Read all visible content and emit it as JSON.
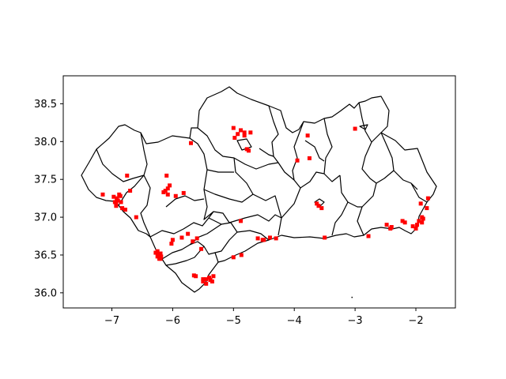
{
  "chart_data": {
    "type": "scatter",
    "title": "",
    "xlabel": "",
    "ylabel": "",
    "xlim": [
      -7.8,
      -1.35
    ],
    "ylim": [
      35.8,
      38.87
    ],
    "x_ticks": [
      -7,
      -6,
      -5,
      -4,
      -3,
      -2
    ],
    "x_tick_labels": [
      "−7",
      "−6",
      "−5",
      "−4",
      "−3",
      "−2"
    ],
    "y_ticks": [
      36.0,
      36.5,
      37.0,
      37.5,
      38.0,
      38.5
    ],
    "y_tick_labels": [
      "36.0",
      "36.5",
      "37.0",
      "37.5",
      "38.0",
      "38.5"
    ],
    "grid": false,
    "marker_color": "#ff0000",
    "boundary_color": "#000000",
    "series": [
      {
        "x": [
          -7.15,
          -6.97,
          -6.95,
          -6.93,
          -6.92,
          -6.9,
          -6.88,
          -6.86,
          -6.83,
          -6.78,
          -6.7,
          -6.6,
          -6.93,
          -6.85,
          -6.75,
          -6.25,
          -6.22,
          -6.2,
          -6.19,
          -6.2,
          -6.15,
          -6.12,
          -6.08,
          -6.05,
          -6.08,
          -5.95,
          -5.82,
          -5.7,
          -6.1,
          -6.02,
          -6.0,
          -5.85,
          -5.75,
          -5.67,
          -5.6,
          -5.53,
          -5.65,
          -5.62,
          -6.28,
          -6.25,
          -6.22,
          -5.5,
          -5.45,
          -5.4,
          -5.38,
          -5.35,
          -5.33,
          -5.45,
          -5.5,
          -5.0,
          -4.98,
          -4.93,
          -4.88,
          -4.82,
          -4.78,
          -4.75,
          -4.72,
          -4.82,
          -4.88,
          -5.0,
          -4.87,
          -4.6,
          -4.5,
          -4.4,
          -4.3,
          -4.52,
          -3.78,
          -3.75,
          -3.95,
          -3.63,
          -3.6,
          -3.55,
          -3.5,
          -3.0,
          -2.78,
          -2.48,
          -2.42,
          -2.4,
          -2.22,
          -2.18,
          -2.05,
          -2.0,
          -1.98,
          -1.95,
          -1.9,
          -1.88,
          -1.82,
          -1.8,
          -1.92,
          -1.9
        ],
        "y": [
          37.3,
          37.27,
          37.2,
          37.18,
          37.25,
          37.22,
          37.3,
          37.28,
          37.12,
          37.1,
          37.35,
          37.0,
          37.15,
          37.2,
          37.55,
          36.55,
          36.5,
          36.45,
          36.48,
          36.52,
          37.33,
          37.35,
          37.38,
          37.42,
          37.3,
          37.28,
          37.32,
          37.98,
          37.55,
          36.65,
          36.7,
          36.73,
          36.78,
          36.68,
          36.72,
          36.58,
          36.23,
          36.22,
          36.53,
          36.48,
          36.45,
          36.15,
          36.18,
          36.2,
          36.17,
          36.15,
          36.22,
          36.12,
          36.18,
          38.18,
          38.05,
          38.1,
          38.15,
          38.12,
          37.9,
          37.88,
          38.12,
          38.08,
          36.95,
          36.47,
          36.5,
          36.72,
          36.7,
          36.73,
          36.72,
          36.7,
          38.08,
          37.78,
          37.75,
          37.18,
          37.15,
          37.12,
          36.73,
          38.17,
          36.75,
          36.9,
          36.85,
          36.87,
          36.95,
          36.93,
          36.88,
          36.85,
          36.9,
          36.95,
          37.0,
          36.98,
          37.12,
          37.25,
          37.18,
          36.93
        ]
      }
    ],
    "stray_point": {
      "x": -3.05,
      "y": 35.94
    }
  }
}
